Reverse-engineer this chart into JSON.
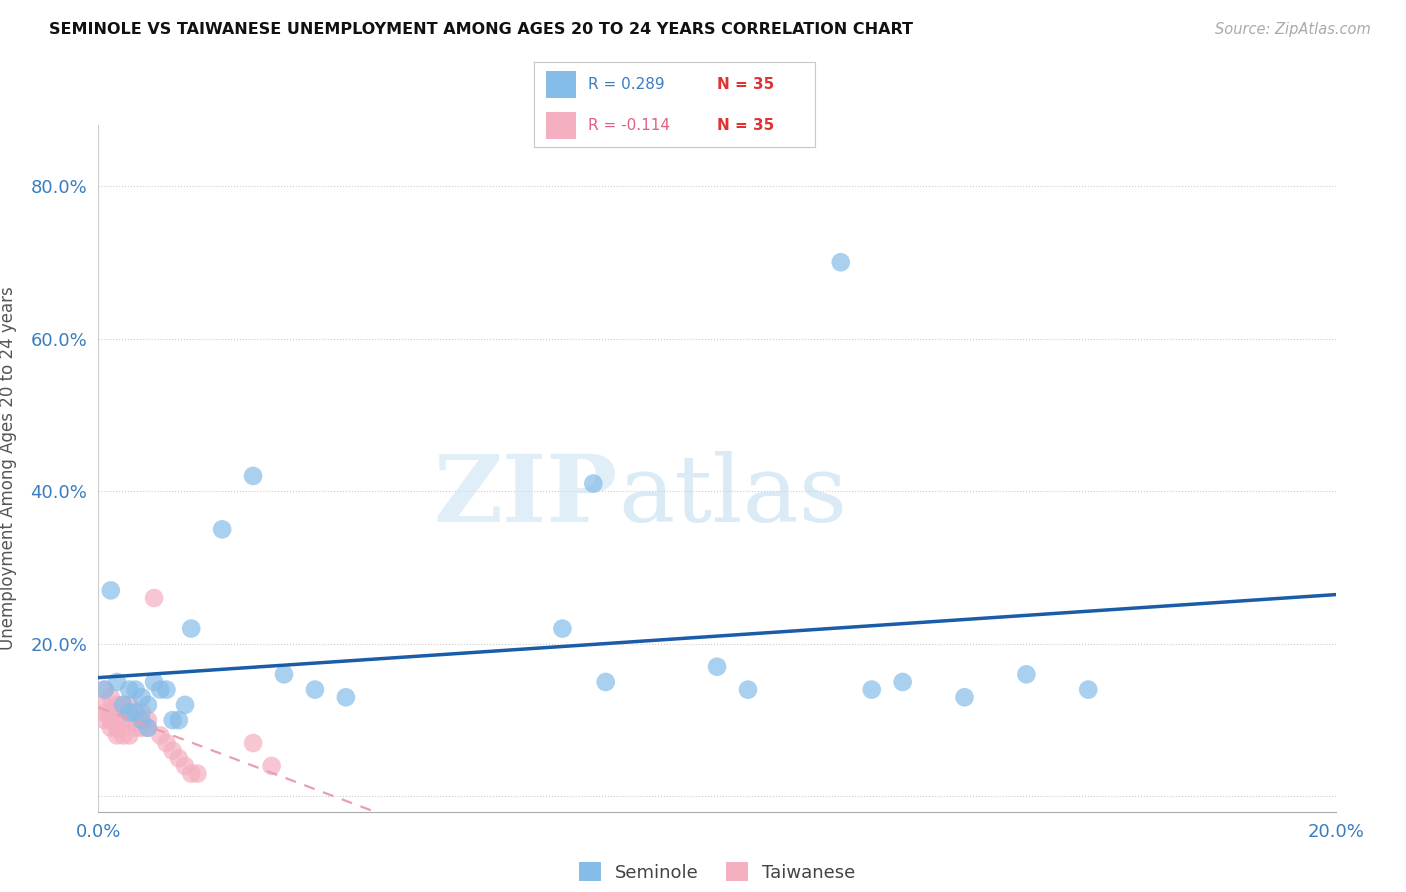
{
  "title": "SEMINOLE VS TAIWANESE UNEMPLOYMENT AMONG AGES 20 TO 24 YEARS CORRELATION CHART",
  "source": "Source: ZipAtlas.com",
  "ylabel": "Unemployment Among Ages 20 to 24 years",
  "xlim": [
    0.0,
    0.2
  ],
  "ylim": [
    -0.02,
    0.88
  ],
  "x_ticks": [
    0.0,
    0.04,
    0.08,
    0.12,
    0.16,
    0.2
  ],
  "y_ticks": [
    0.0,
    0.2,
    0.4,
    0.6,
    0.8
  ],
  "background_color": "#ffffff",
  "grid_color": "#cccccc",
  "seminole_color": "#85bce8",
  "taiwanese_color": "#f4afc0",
  "trend_seminole_color": "#1a5ca8",
  "trend_taiwanese_color": "#e8a0b0",
  "seminole_x": [
    0.001,
    0.002,
    0.003,
    0.004,
    0.005,
    0.005,
    0.006,
    0.006,
    0.007,
    0.007,
    0.008,
    0.008,
    0.009,
    0.01,
    0.011,
    0.012,
    0.013,
    0.014,
    0.015,
    0.02,
    0.025,
    0.03,
    0.035,
    0.04,
    0.075,
    0.08,
    0.082,
    0.1,
    0.105,
    0.12,
    0.125,
    0.13,
    0.14,
    0.15,
    0.16
  ],
  "seminole_y": [
    0.14,
    0.27,
    0.15,
    0.12,
    0.14,
    0.11,
    0.14,
    0.11,
    0.13,
    0.1,
    0.12,
    0.09,
    0.15,
    0.14,
    0.14,
    0.1,
    0.1,
    0.12,
    0.22,
    0.35,
    0.42,
    0.16,
    0.14,
    0.13,
    0.22,
    0.41,
    0.15,
    0.17,
    0.14,
    0.7,
    0.14,
    0.15,
    0.13,
    0.16,
    0.14
  ],
  "taiwanese_x": [
    0.001,
    0.001,
    0.001,
    0.001,
    0.002,
    0.002,
    0.002,
    0.002,
    0.003,
    0.003,
    0.003,
    0.003,
    0.003,
    0.004,
    0.004,
    0.004,
    0.005,
    0.005,
    0.005,
    0.006,
    0.006,
    0.007,
    0.007,
    0.008,
    0.008,
    0.009,
    0.01,
    0.011,
    0.012,
    0.013,
    0.014,
    0.015,
    0.016,
    0.025,
    0.028
  ],
  "taiwanese_y": [
    0.14,
    0.12,
    0.11,
    0.1,
    0.13,
    0.11,
    0.1,
    0.09,
    0.12,
    0.11,
    0.1,
    0.09,
    0.08,
    0.12,
    0.1,
    0.08,
    0.12,
    0.1,
    0.08,
    0.11,
    0.09,
    0.11,
    0.09,
    0.1,
    0.09,
    0.26,
    0.08,
    0.07,
    0.06,
    0.05,
    0.04,
    0.03,
    0.03,
    0.07,
    0.04
  ],
  "seminole_R": 0.289,
  "taiwanese_R": -0.114,
  "N_seminole": 35,
  "N_taiwanese": 35
}
